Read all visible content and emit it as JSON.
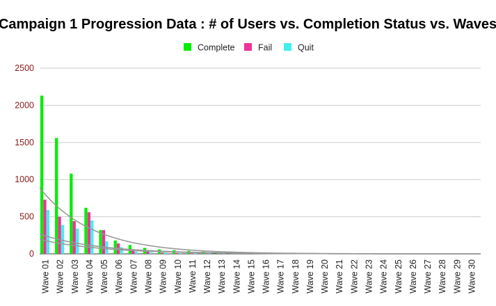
{
  "chart_data": {
    "type": "bar",
    "title": "Campaign 1 Progression Data : # of Users vs. Completion Status vs. Waves",
    "xlabel": "",
    "ylabel": "",
    "ylim": [
      0,
      2500
    ],
    "yticks": [
      "0",
      "500",
      "1000",
      "1500",
      "2000",
      "2500"
    ],
    "grid": true,
    "legend_position": "top",
    "trendlines": true,
    "categories": [
      "Wave 01",
      "Wave 02",
      "Wave 03",
      "Wave 04",
      "Wave 05",
      "Wave 06",
      "Wave 07",
      "Wave 08",
      "Wave 09",
      "Wave 10",
      "Wave 11",
      "Wave 12",
      "Wave 13",
      "Wave 14",
      "Wave 15",
      "Wave 16",
      "Wave 17",
      "Wave 18",
      "Wave 19",
      "Wave 20",
      "Wave 21",
      "Wave 22",
      "Wave 23",
      "Wave 24",
      "Wave 25",
      "Wave 26",
      "Wave 27",
      "Wave 28",
      "Wave 29",
      "Wave 30"
    ],
    "series": [
      {
        "name": "Complete",
        "color": "#00ee00",
        "values": [
          2130,
          1560,
          1080,
          620,
          320,
          180,
          120,
          80,
          60,
          50,
          40,
          30,
          20,
          10,
          8,
          6,
          5,
          4,
          3,
          2,
          2,
          1,
          1,
          1,
          1,
          1,
          1,
          1,
          1,
          1
        ]
      },
      {
        "name": "Fail",
        "color": "#ee3399",
        "values": [
          730,
          500,
          440,
          560,
          320,
          140,
          60,
          30,
          15,
          10,
          8,
          6,
          5,
          4,
          3,
          2,
          2,
          1,
          1,
          1,
          1,
          1,
          1,
          1,
          1,
          1,
          1,
          1,
          1,
          1
        ]
      },
      {
        "name": "Quit",
        "color": "#44eeee",
        "values": [
          590,
          390,
          340,
          450,
          170,
          90,
          30,
          20,
          15,
          10,
          8,
          6,
          5,
          4,
          3,
          2,
          2,
          1,
          1,
          1,
          1,
          1,
          1,
          1,
          1,
          1,
          1,
          1,
          1,
          1
        ]
      }
    ]
  }
}
